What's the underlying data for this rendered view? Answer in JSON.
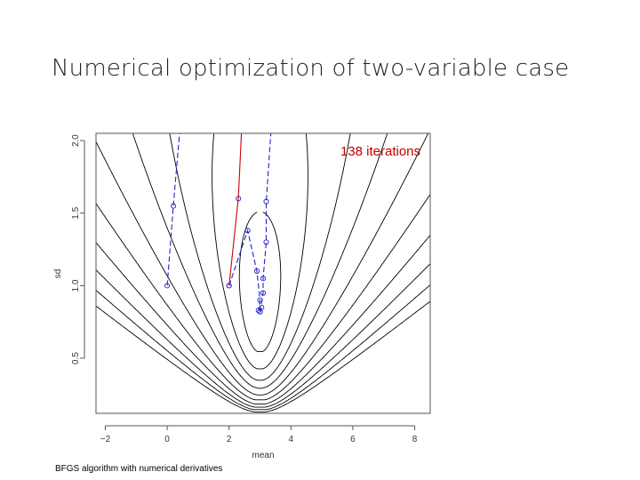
{
  "slide": {
    "title": "Numerical optimization of two-variable case",
    "caption": "BFGS algorithm with numerical derivatives"
  },
  "chart_data": {
    "type": "contour",
    "xlabel": "mean",
    "ylabel": "sd",
    "xlim": [
      -2.3,
      8.5
    ],
    "ylim": [
      0.12,
      2.05
    ],
    "x_ticks": [
      -2,
      0,
      2,
      4,
      6,
      8
    ],
    "y_ticks": [
      0.5,
      1.0,
      1.5,
      2.0
    ],
    "y_tick_labels": [
      "0.5",
      "1.0",
      "1.5",
      "2.0"
    ],
    "annotation": "138 iterations",
    "minimum": {
      "mean": 3.0,
      "sd": 0.83
    },
    "colors": {
      "contour": "#000000",
      "path_blue": "#2222cc",
      "path_red": "#cc0000",
      "annotation": "#c00000"
    },
    "series": [
      {
        "color": "#2222cc",
        "style": "dashed",
        "points": [
          [
            0,
            1.0
          ],
          [
            0.2,
            1.55
          ],
          [
            0.4,
            2.05
          ]
        ]
      },
      {
        "color": "#cc0000",
        "style": "solid",
        "points": [
          [
            2.0,
            1.0
          ],
          [
            2.3,
            1.6
          ],
          [
            2.4,
            2.05
          ]
        ]
      },
      {
        "color": "#2222cc",
        "style": "dashed",
        "points": [
          [
            2.0,
            1.0
          ],
          [
            2.6,
            1.38
          ],
          [
            2.9,
            1.1
          ],
          [
            3.0,
            0.9
          ],
          [
            2.95,
            0.83
          ],
          [
            3.05,
            0.85
          ],
          [
            3.0,
            0.82
          ]
        ]
      },
      {
        "color": "#2222cc",
        "style": "dashed",
        "points": [
          [
            3.0,
            0.82
          ],
          [
            3.1,
            0.95
          ],
          [
            3.1,
            1.05
          ],
          [
            3.2,
            1.3
          ],
          [
            3.2,
            1.58
          ],
          [
            3.35,
            2.05
          ]
        ]
      }
    ]
  }
}
